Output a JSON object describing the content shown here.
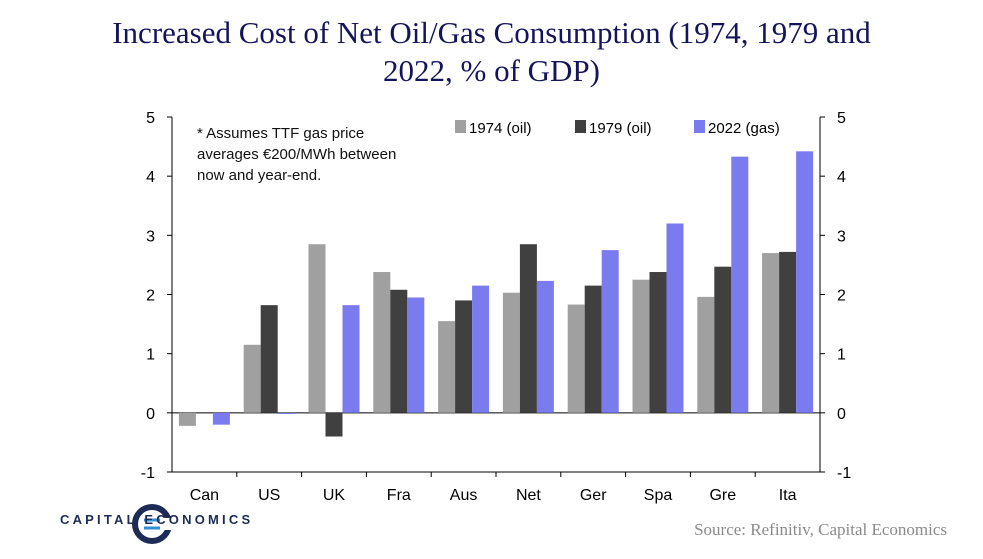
{
  "title": "Increased Cost of Net Oil/Gas Consumption (1974, 1979 and 2022, % of GDP)",
  "title_line1": "Increased Cost of Net Oil/Gas Consumption (1974, 1979 and",
  "title_line2": "2022, % of GDP)",
  "source": "Source: Refinitiv, Capital Economics",
  "logo_text": "CAPITAL ECONOMICS",
  "chart_data": {
    "type": "bar",
    "categories": [
      "Can",
      "US",
      "UK",
      "Fra",
      "Aus",
      "Net",
      "Ger",
      "Spa",
      "Gre",
      "Ita"
    ],
    "series": [
      {
        "name": "1974 (oil)",
        "color": "#a0a0a0",
        "values": [
          -0.22,
          1.15,
          2.85,
          2.38,
          1.55,
          2.03,
          1.83,
          2.25,
          1.96,
          2.7
        ]
      },
      {
        "name": "1979 (oil)",
        "color": "#404040",
        "values": [
          null,
          1.82,
          -0.4,
          2.08,
          1.9,
          2.85,
          2.15,
          2.38,
          2.47,
          2.72
        ]
      },
      {
        "name": "2022 (gas)",
        "color": "#7b7bf0",
        "values": [
          -0.2,
          -0.02,
          1.82,
          1.95,
          2.15,
          2.23,
          2.75,
          3.2,
          4.33,
          4.42
        ]
      }
    ],
    "ylim": [
      -1,
      5
    ],
    "yticks": [
      "-1",
      "0",
      "1",
      "2",
      "3",
      "4",
      "5"
    ],
    "annotation": [
      "* Assumes TTF gas price",
      "averages €200/MWh between",
      "now and year-end."
    ],
    "legend_position": "top",
    "grid": false,
    "xlabel": "",
    "ylabel": ""
  }
}
